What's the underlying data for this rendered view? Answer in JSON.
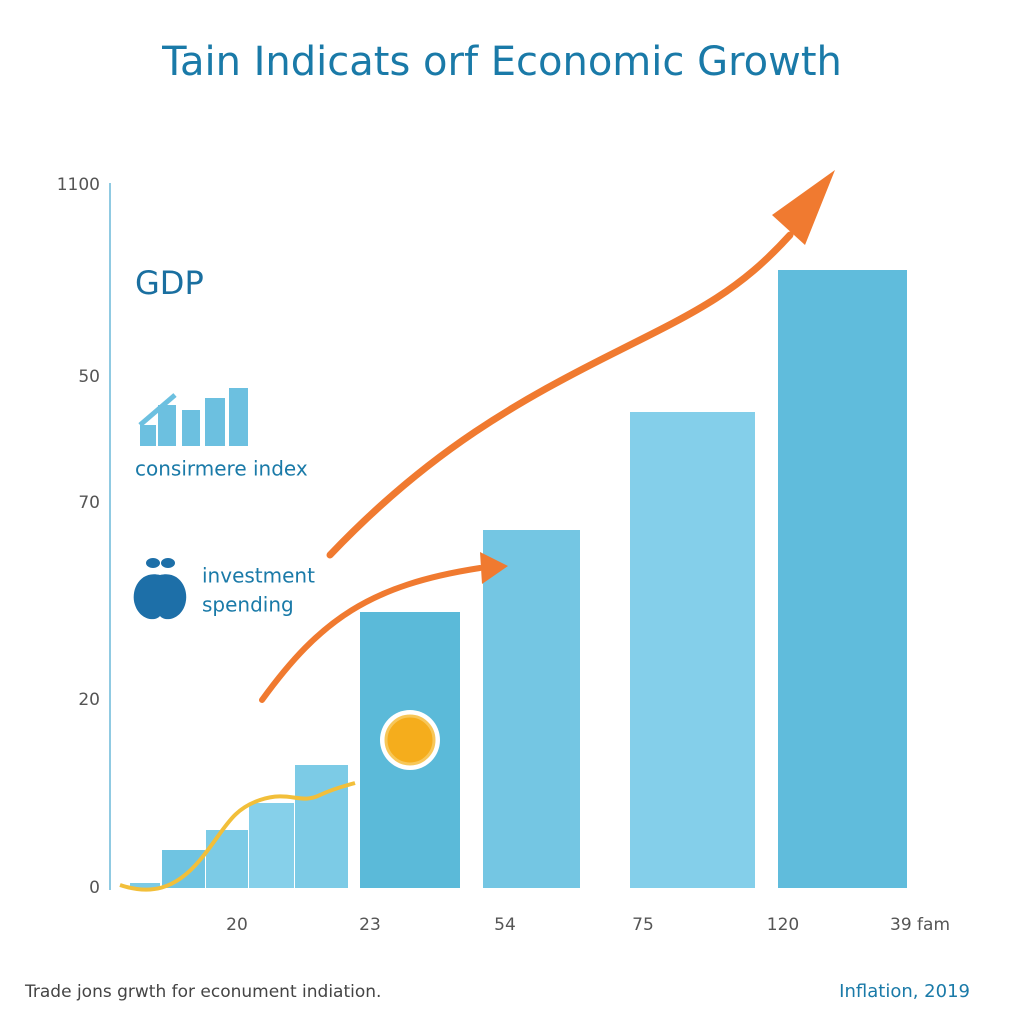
{
  "title": "Tain Indicats orf Economic Growth",
  "y_axis_labels": [
    "1100",
    "50",
    "70",
    "20",
    "0"
  ],
  "x_axis_labels": [
    "20",
    "23",
    "54",
    "75",
    "120",
    "39 fam"
  ],
  "labels": {
    "gdp": "GDP",
    "consumer": "consirmere index",
    "investment_1": "investment",
    "investment_2": "spending"
  },
  "footer": {
    "left": "Trade jons grwth for econument indiation.",
    "right": "Inflation, 2019"
  }
}
